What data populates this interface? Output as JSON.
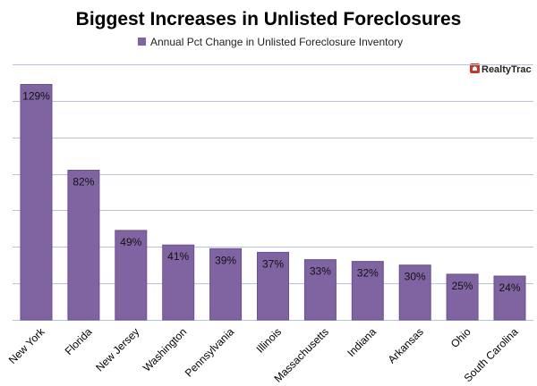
{
  "chart_data": {
    "type": "bar",
    "title": "Biggest Increases in Unlisted Foreclosures",
    "xlabel": "",
    "ylabel": "",
    "categories": [
      "New York",
      "Florida",
      "New Jersey",
      "Washington",
      "Pennsylvania",
      "Illinois",
      "Massachusetts",
      "Indiana",
      "Arkansas",
      "Ohio",
      "South Carolina"
    ],
    "series": [
      {
        "name": "Annual Pct Change in Unlisted Foreclosure Inventory",
        "values": [
          129,
          82,
          49,
          41,
          39,
          37,
          33,
          32,
          30,
          25,
          24
        ],
        "labels": [
          "129%",
          "82%",
          "49%",
          "41%",
          "39%",
          "37%",
          "33%",
          "32%",
          "30%",
          "25%",
          "24%"
        ]
      }
    ],
    "ylim": [
      0,
      140
    ],
    "grid_step": 20,
    "grid": true,
    "legend_position": "top",
    "bar_color": "#8064a2",
    "bar_stroke": "#6a5190",
    "grid_color": "#b6c3dc"
  },
  "logo": {
    "text": "RealtyTrac",
    "color": "#c0392b"
  }
}
